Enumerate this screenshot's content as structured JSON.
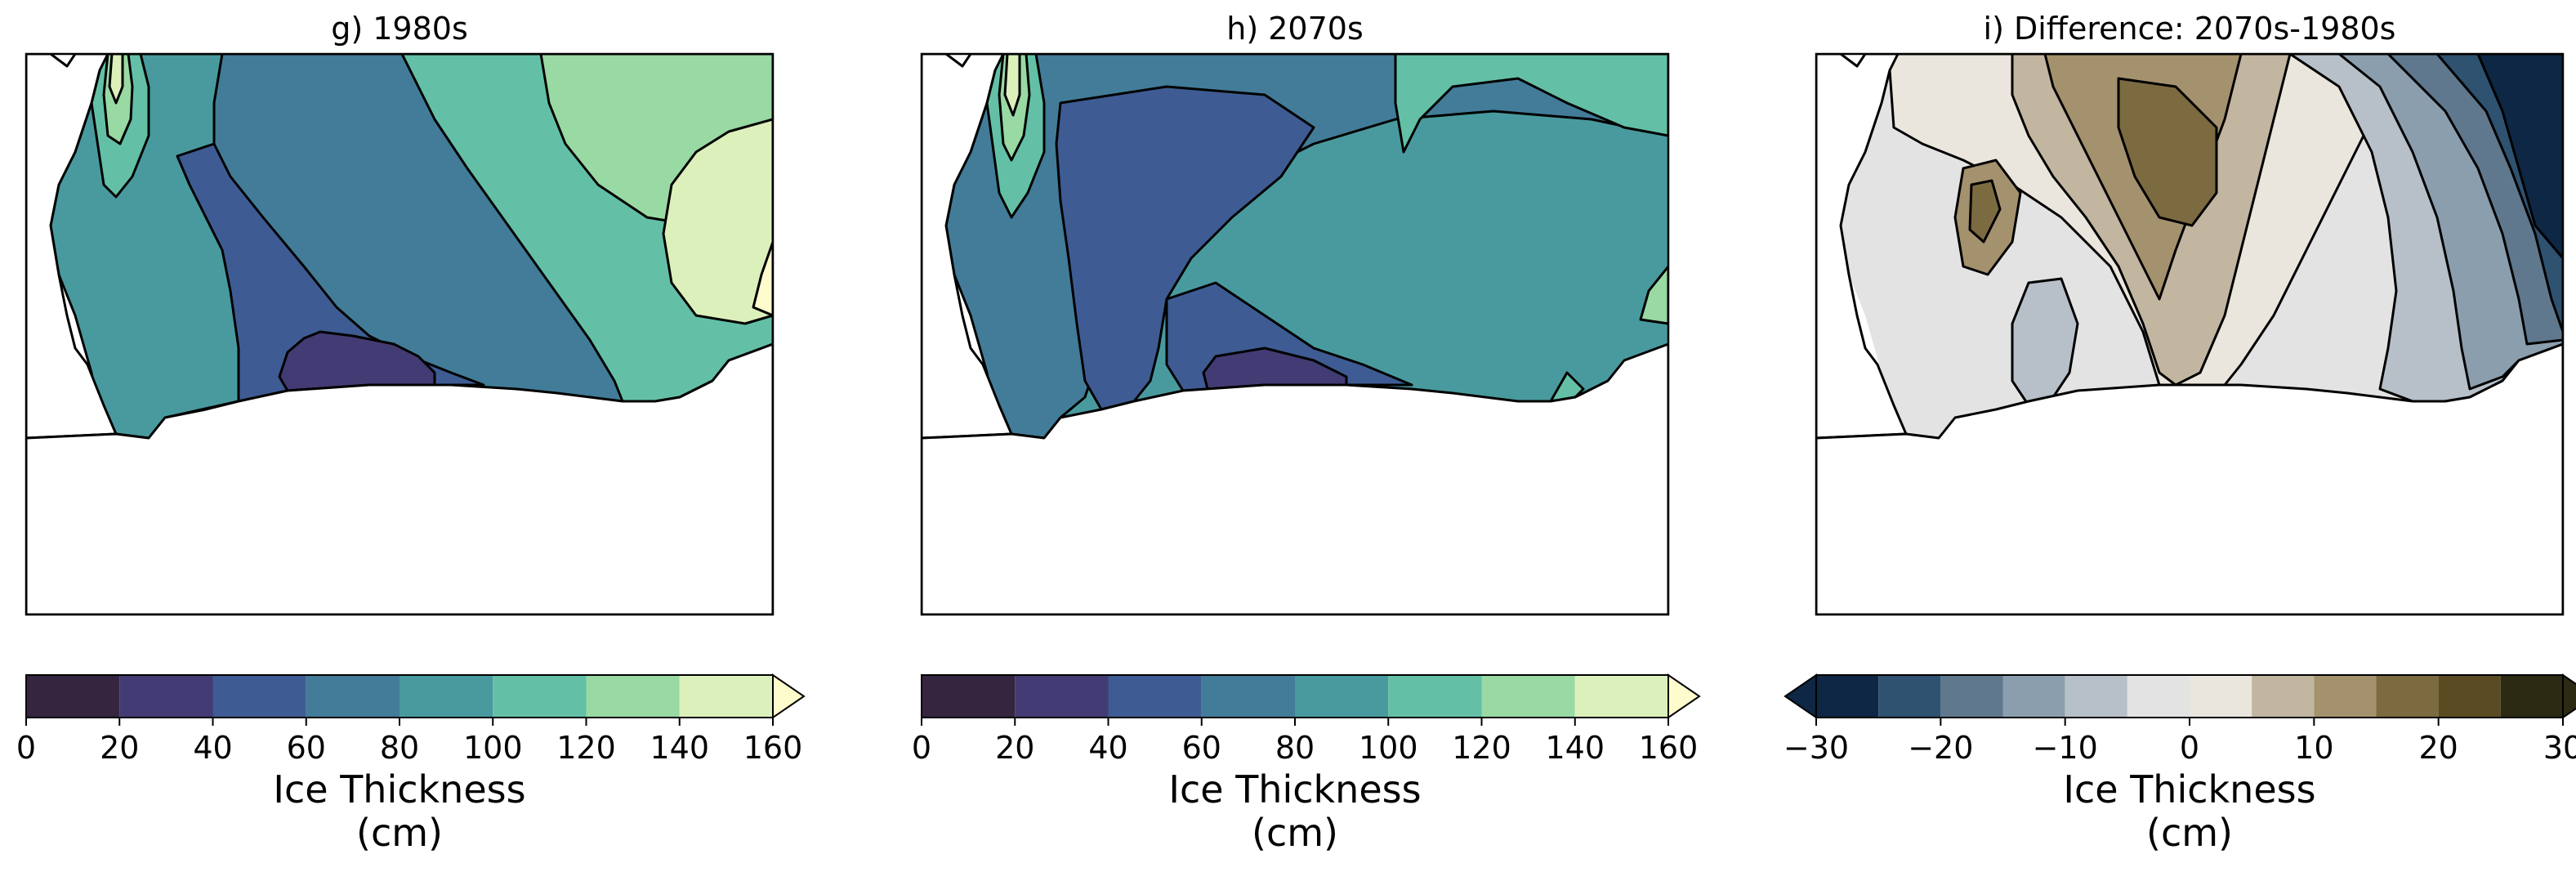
{
  "chart_data": [
    {
      "type": "heatmap",
      "title": "g) 1980s",
      "colorbar": {
        "label_line1": "Ice Thickness",
        "label_line2": "(cm)",
        "levels": [
          0,
          20,
          40,
          60,
          80,
          100,
          120,
          140,
          160
        ],
        "tick_labels": [
          "0",
          "20",
          "40",
          "60",
          "80",
          "100",
          "120",
          "140",
          "160"
        ],
        "extend": "max",
        "colors": [
          "#35253f",
          "#433b73",
          "#3e5c93",
          "#427c98",
          "#499a9e",
          "#63c0a6",
          "#99d9a3",
          "#dcf0bb",
          "#fefccc"
        ]
      }
    },
    {
      "type": "heatmap",
      "title": "h) 2070s",
      "colorbar": {
        "label_line1": "Ice Thickness",
        "label_line2": "(cm)",
        "levels": [
          0,
          20,
          40,
          60,
          80,
          100,
          120,
          140,
          160
        ],
        "tick_labels": [
          "0",
          "20",
          "40",
          "60",
          "80",
          "100",
          "120",
          "140",
          "160"
        ],
        "extend": "max",
        "colors": [
          "#35253f",
          "#433b73",
          "#3e5c93",
          "#427c98",
          "#499a9e",
          "#63c0a6",
          "#99d9a3",
          "#dcf0bb",
          "#fefccc"
        ]
      }
    },
    {
      "type": "heatmap",
      "title": "i) Difference: 2070s-1980s",
      "colorbar": {
        "label_line1": "Ice Thickness",
        "label_line2": "(cm)",
        "levels": [
          -30,
          -25,
          -20,
          -15,
          -10,
          -5,
          0,
          5,
          10,
          15,
          20,
          25,
          30
        ],
        "tick_labels": [
          "−30",
          "−20",
          "−10",
          "0",
          "10",
          "20",
          "30"
        ],
        "tick_values": [
          -30,
          -20,
          -10,
          0,
          10,
          20,
          30
        ],
        "extend": "both",
        "colors": [
          "#0d2744",
          "#2e5270",
          "#5f788d",
          "#8b9eae",
          "#b7c0c8",
          "#e3e3e3",
          "#eae6dd",
          "#c2b6a0",
          "#a4916d",
          "#7c6a41",
          "#5a4b23",
          "#2c2a12"
        ]
      }
    }
  ]
}
